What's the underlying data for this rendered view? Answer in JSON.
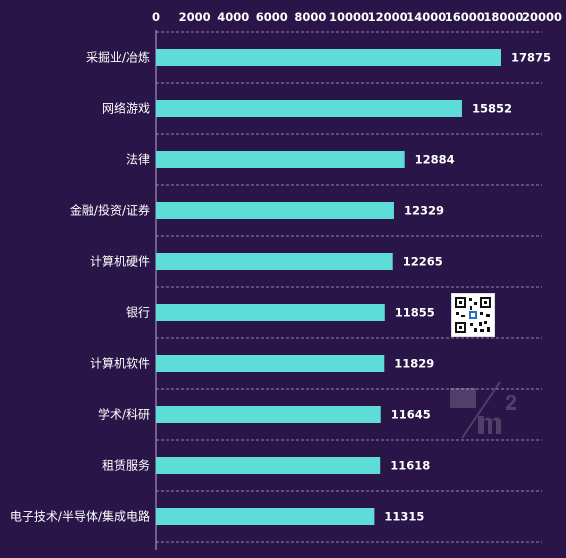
{
  "chart_data": {
    "type": "bar",
    "orientation": "horizontal",
    "categories": [
      "采掘业/冶炼",
      "网络游戏",
      "法律",
      "金融/投资/证券",
      "计算机硬件",
      "银行",
      "计算机软件",
      "学术/科研",
      "租赁服务",
      "电子技术/半导体/集成电路"
    ],
    "values": [
      17875,
      15852,
      12884,
      12329,
      12265,
      11855,
      11829,
      11645,
      11618,
      11315
    ],
    "xlim": [
      0,
      20000
    ],
    "xticks": [
      0,
      2000,
      4000,
      6000,
      8000,
      10000,
      12000,
      14000,
      16000,
      18000,
      20000
    ],
    "x_axis_position": "top",
    "grid": "dashed-horizontal-separators",
    "data_labels": true
  },
  "colors": {
    "background": "#2a1548",
    "bar": "#5ddcd8",
    "text": "#ffffff",
    "grid": "#b9a9cf"
  },
  "decorations": {
    "qr_code": "qr-code-icon",
    "watermark": "m2-logo-watermark"
  }
}
